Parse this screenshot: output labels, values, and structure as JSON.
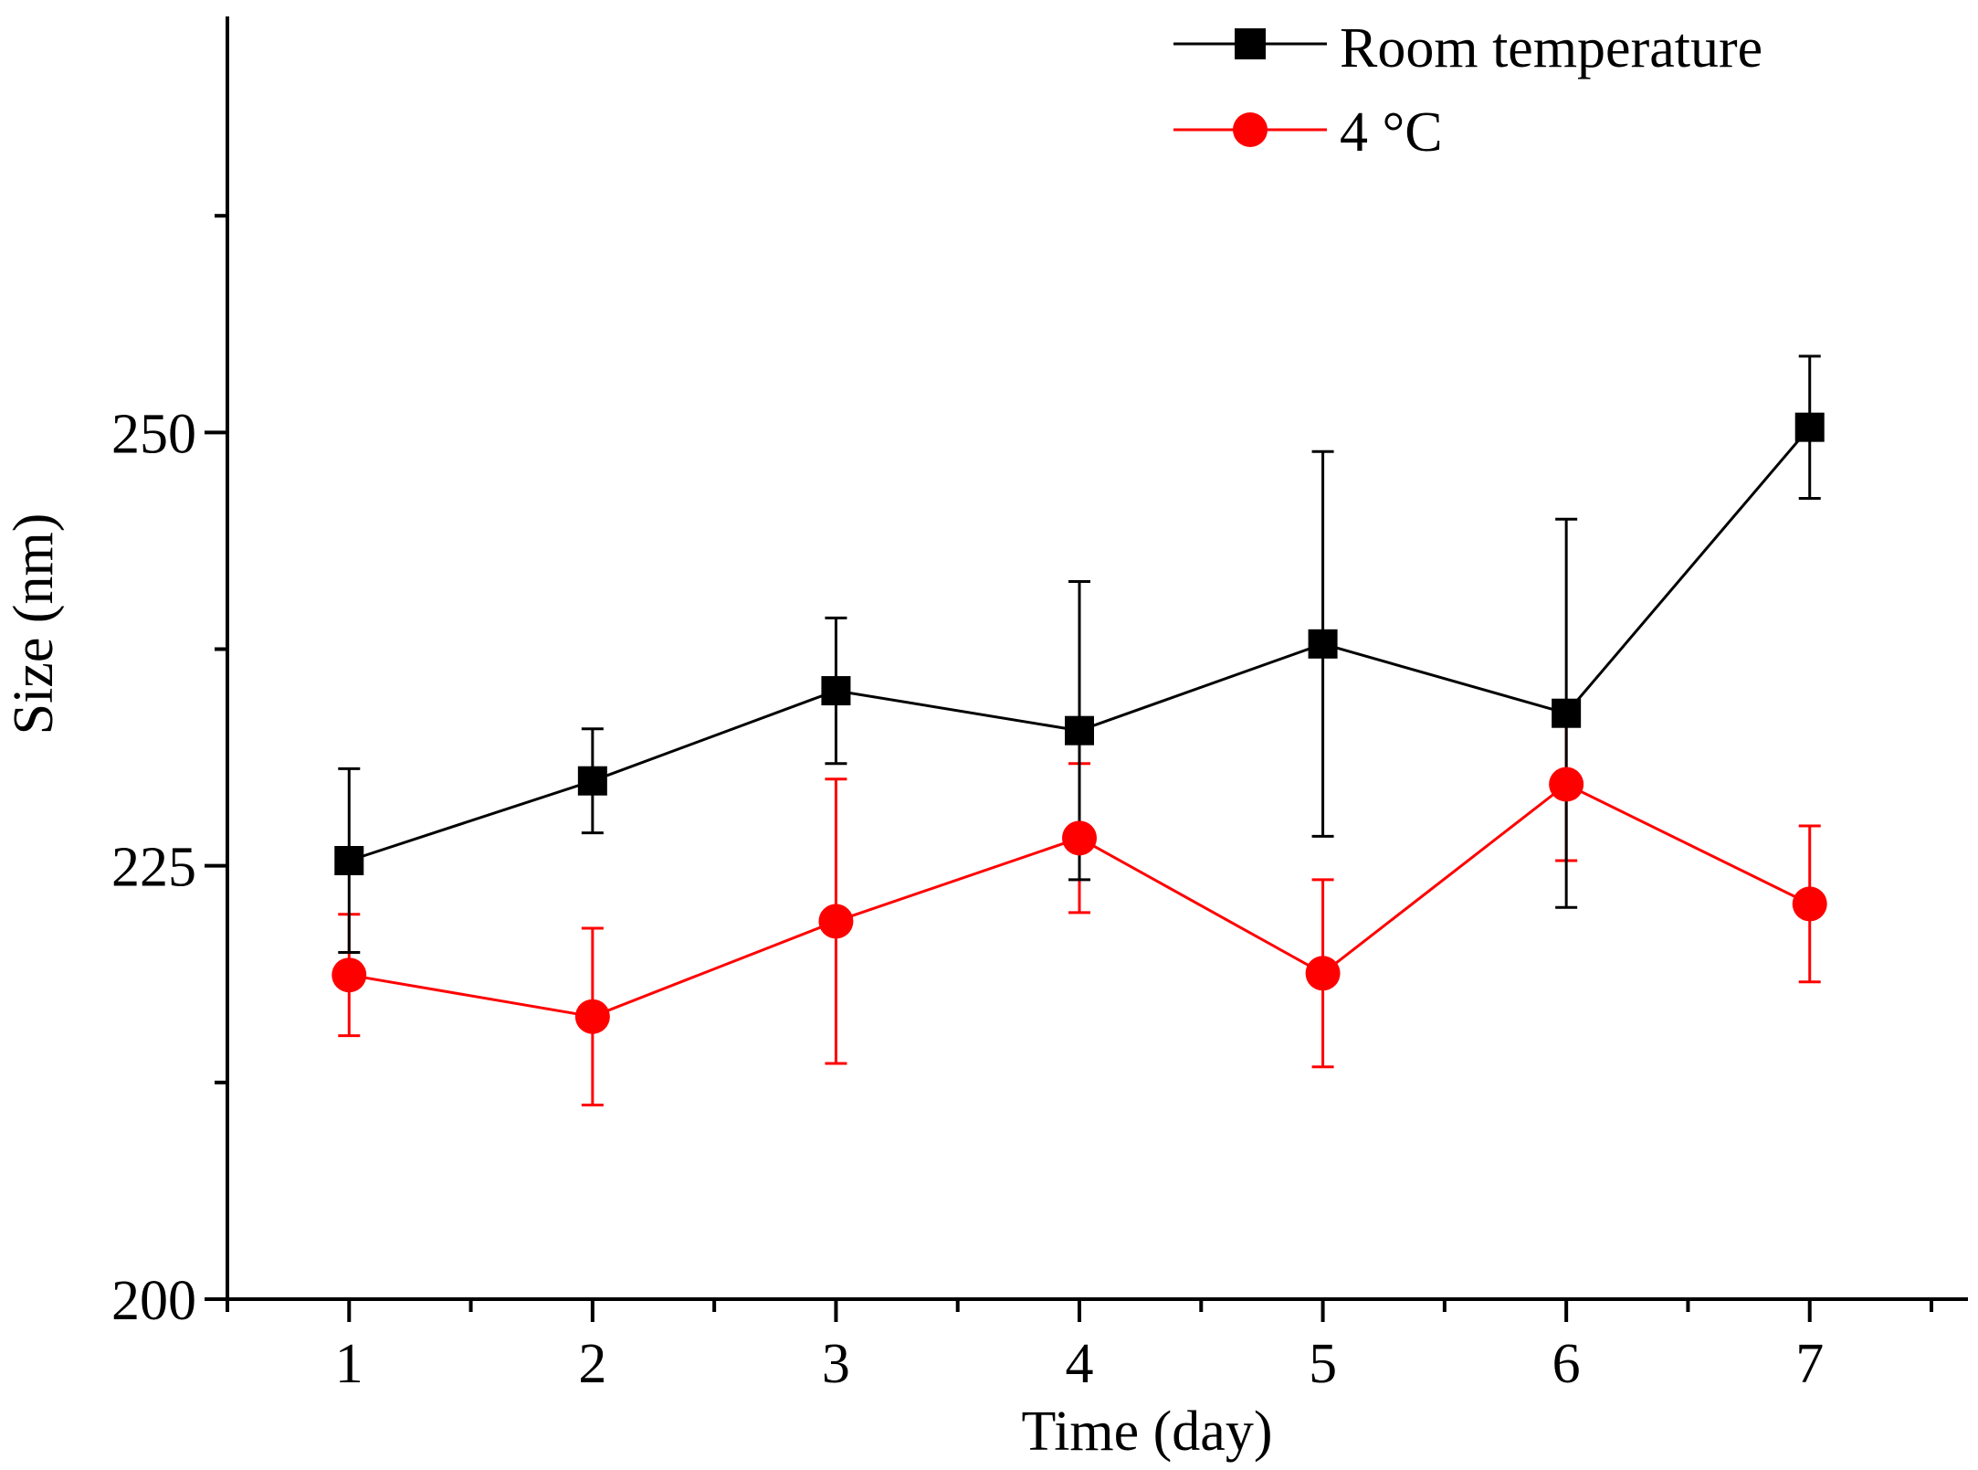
{
  "chart_data": {
    "type": "line",
    "title": "",
    "xlabel": "Time (day)",
    "ylabel": "Size (nm)",
    "x": [
      1,
      2,
      3,
      4,
      5,
      6,
      7
    ],
    "xlim": [
      0.5,
      7.65
    ],
    "ylim": [
      200,
      274
    ],
    "xticks": [
      1,
      2,
      3,
      4,
      5,
      6,
      7
    ],
    "yticks": [
      200,
      225,
      250
    ],
    "y_minor_ticks": [
      212.5,
      237.5,
      262.5
    ],
    "grid": false,
    "legend_position": "top-right",
    "series": [
      {
        "name": "Room temperature",
        "color": "#000000",
        "marker": "square",
        "values": [
          225.3,
          229.9,
          235.1,
          232.8,
          237.8,
          233.8,
          250.3
        ],
        "errors": [
          5.3,
          3.0,
          4.2,
          8.6,
          11.1,
          11.2,
          4.1
        ]
      },
      {
        "name": "4 °C",
        "color": "#ff0000",
        "marker": "circle",
        "values": [
          218.7,
          216.3,
          221.8,
          226.6,
          218.8,
          229.7,
          222.8
        ],
        "errors": [
          3.5,
          5.1,
          8.2,
          4.3,
          5.4,
          4.4,
          4.5
        ]
      }
    ]
  }
}
